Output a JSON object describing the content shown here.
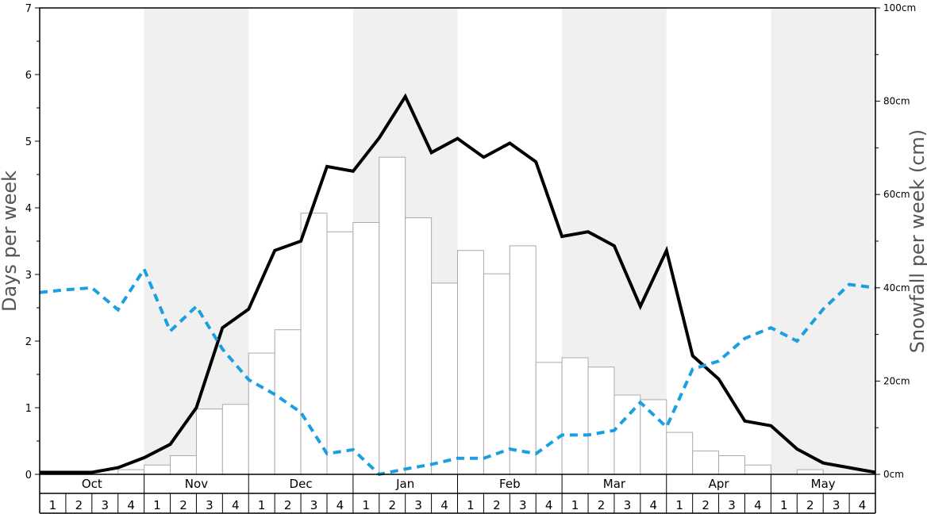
{
  "chart_data": {
    "type": "bar",
    "title": "",
    "ylabel_left": "Days per week",
    "ylabel_right": "Snowfall per week (cm)",
    "ylim_left": [
      0,
      7
    ],
    "ylim_right": [
      0,
      100
    ],
    "left_ticks": [
      "0",
      "1",
      "2",
      "3",
      "4",
      "5",
      "6",
      "7"
    ],
    "right_ticks": [
      "0cm",
      "20cm",
      "40cm",
      "60cm",
      "80cm",
      "100cm"
    ],
    "months": [
      "Oct",
      "Nov",
      "Dec",
      "Jan",
      "Feb",
      "Mar",
      "Apr",
      "May"
    ],
    "week_labels": [
      "1",
      "2",
      "3",
      "4"
    ],
    "grid": false,
    "colors": {
      "bar_fill": "#ffffff",
      "bar_stroke": "#aaaaaa",
      "band_shade": "#f0f0f0",
      "snow_days_line": "#000000",
      "dashed_line": "#1a9fe0"
    },
    "series": [
      {
        "type": "bar",
        "axis": "right",
        "values": [
          0,
          0,
          0,
          1,
          2,
          4,
          14,
          15,
          26,
          31,
          56,
          52,
          54,
          68,
          55,
          41,
          48,
          43,
          49,
          24,
          25,
          23,
          17,
          16,
          9,
          5,
          4,
          2,
          0,
          1,
          0,
          0
        ]
      },
      {
        "type": "line",
        "axis": "left",
        "values": [
          0.03,
          0.03,
          0.03,
          0.1,
          0.25,
          0.45,
          1.0,
          2.2,
          2.48,
          3.36,
          3.5,
          4.62,
          4.55,
          5.05,
          5.67,
          4.83,
          5.04,
          4.76,
          4.97,
          4.69,
          3.57,
          3.64,
          3.43,
          2.52,
          3.36,
          1.78,
          1.43,
          0.8,
          0.73,
          0.38,
          0.17,
          0.1,
          0.03
        ]
      },
      {
        "type": "line",
        "axis": "left",
        "style": "dashed",
        "values": [
          2.73,
          2.77,
          2.8,
          2.47,
          3.08,
          2.15,
          2.52,
          1.88,
          1.42,
          1.2,
          0.93,
          0.31,
          0.37,
          0.0,
          0.08,
          0.15,
          0.24,
          0.24,
          0.38,
          0.31,
          0.59,
          0.59,
          0.66,
          1.08,
          0.71,
          1.58,
          1.7,
          2.04,
          2.2,
          2.0,
          2.48,
          2.85,
          2.8
        ]
      }
    ]
  }
}
